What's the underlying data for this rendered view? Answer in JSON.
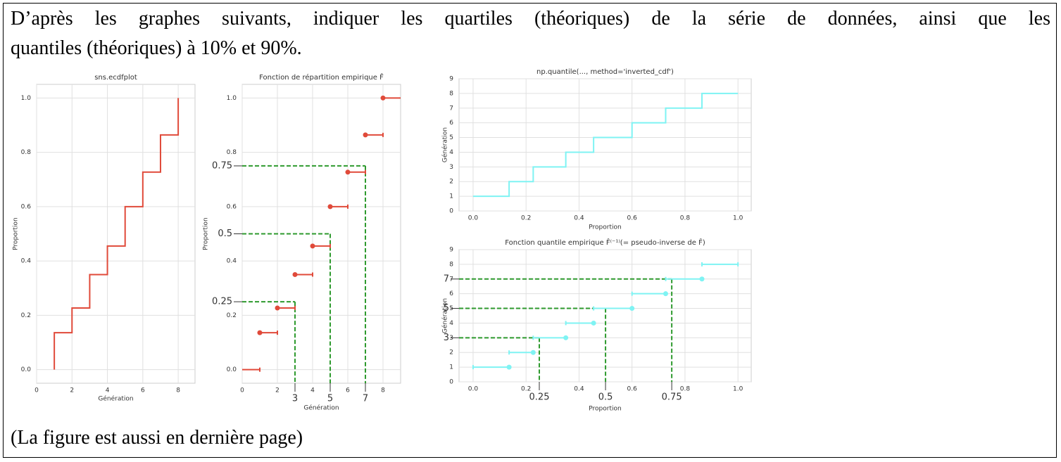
{
  "question_lines": [
    "D’après les graphes suivants, indiquer les quartiles (théoriques) de la série de données, ainsi que les",
    "quantiles (théoriques) à 10% et 90%."
  ],
  "note": "(La figure est aussi en dernière page)",
  "chart_data": [
    {
      "type": "step",
      "step": "pre",
      "title": "sns.ecdfplot",
      "x_label": "Génération",
      "y_label": "Proportion",
      "x": [
        1,
        2,
        3,
        4,
        5,
        6,
        7,
        8
      ],
      "values": [
        0.136,
        0.227,
        0.35,
        0.455,
        0.6,
        0.727,
        0.864,
        1.0
      ],
      "color": "#e04a3a",
      "xlim": [
        0,
        8.95
      ],
      "ylim": [
        -0.05,
        1.05
      ],
      "xticks": [
        0,
        2,
        4,
        6,
        8
      ],
      "yticks": [
        {
          "value": 0,
          "label": "0.0"
        },
        0.2,
        0.4,
        0.6,
        0.8,
        {
          "value": 1,
          "label": "1.0"
        }
      ],
      "grid": true
    },
    {
      "type": "ecdf",
      "title": "Fonction de répartition empirique F̂",
      "x_label": "Génération",
      "y_label": "Proportion",
      "x": [
        0,
        1,
        2,
        3,
        4,
        5,
        6,
        7,
        8
      ],
      "values": [
        0,
        0.136,
        0.227,
        0.35,
        0.455,
        0.6,
        0.727,
        0.864,
        1.0
      ],
      "color": "#e04a3a",
      "xlim": [
        0,
        9
      ],
      "ylim": [
        -0.05,
        1.05
      ],
      "xticks": [
        0,
        2,
        4,
        6,
        8
      ],
      "yticks": [
        {
          "value": 0,
          "label": "0.0"
        },
        0.2,
        0.4,
        0.6,
        0.8,
        {
          "value": 1,
          "label": "1.0"
        }
      ],
      "grid": true,
      "extra_xticks": [
        3,
        5,
        7
      ],
      "extra_yticks": [
        0.25,
        0.5,
        0.75
      ],
      "guide_color": "#2e9a2e"
    },
    {
      "type": "step",
      "step": "post",
      "title": "np.quantile(..., method='inverted_cdf')",
      "x_label": "Proportion",
      "y_label": "Génération",
      "x": [
        0,
        0.136,
        0.227,
        0.35,
        0.455,
        0.6,
        0.727,
        0.864,
        1.0
      ],
      "values": [
        1,
        2,
        3,
        4,
        5,
        6,
        7,
        8,
        8
      ],
      "color": "#7ff3f3",
      "xlim": [
        -0.053,
        1.05
      ],
      "ylim": [
        0,
        9
      ],
      "xticks": [
        {
          "value": 0,
          "label": "0.0"
        },
        0.2,
        0.4,
        0.6,
        0.8,
        {
          "value": 1,
          "label": "1.0"
        }
      ],
      "yticks": [
        0,
        1,
        2,
        3,
        4,
        5,
        6,
        7,
        8,
        9
      ],
      "grid": true
    },
    {
      "type": "quantile",
      "title": "Fonction quantile empirique F̂⁽⁻¹⁾(= pseudo-inverse de F̂)",
      "x_label": "Proportion",
      "y_label": "Génération",
      "x_start": [
        0,
        0.136,
        0.227,
        0.35,
        0.455,
        0.6,
        0.727,
        0.864
      ],
      "x_end": [
        0.136,
        0.227,
        0.35,
        0.455,
        0.6,
        0.727,
        0.864,
        1.0
      ],
      "values": [
        1,
        2,
        3,
        4,
        5,
        6,
        7,
        8
      ],
      "color": "#7ff3f3",
      "xlim": [
        -0.053,
        1.05
      ],
      "ylim": [
        0,
        9
      ],
      "xticks": [
        {
          "value": 0,
          "label": "0.0"
        },
        0.2,
        0.4,
        0.6,
        0.8,
        {
          "value": 1,
          "label": "1.0"
        }
      ],
      "yticks": [
        0,
        1,
        2,
        3,
        4,
        5,
        6,
        7,
        8,
        9
      ],
      "grid": true,
      "extra_xticks": [
        0.25,
        0.5,
        0.75
      ],
      "extra_yticks": [
        3,
        5,
        7
      ],
      "guide_color": "#2e9a2e"
    }
  ]
}
